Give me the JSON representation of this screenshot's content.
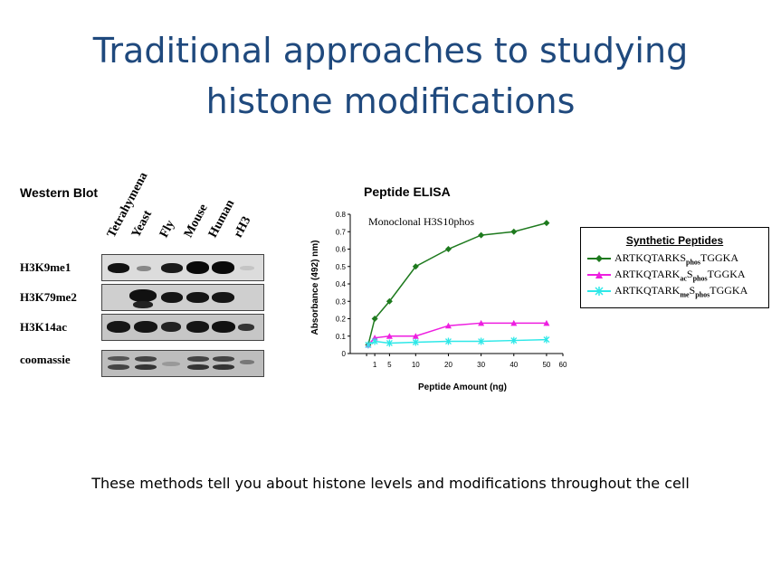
{
  "title": {
    "line1": "Traditional approaches to studying",
    "line2": "histone modifications"
  },
  "western_blot": {
    "heading": "Western Blot",
    "lanes": [
      "Tetrahymena",
      "Yeast",
      "Fly",
      "Mouse",
      "Human",
      "rH3"
    ],
    "rows": [
      "H3K9me1",
      "H3K79me2",
      "H3K14ac",
      "coomassie"
    ]
  },
  "elisa": {
    "heading": "Peptide ELISA",
    "annotation": "Monoclonal H3S10phos",
    "legend": {
      "title": "Synthetic Peptides",
      "entries": [
        {
          "pre": "ARTKQTARKS",
          "sub1": "phos",
          "mid": "",
          "sub2": "",
          "post": "TGGKA"
        },
        {
          "pre": "ARTKQTARK",
          "sub1": "ac",
          "mid": "S",
          "sub2": "phos",
          "post": "TGGKA"
        },
        {
          "pre": "ARTKQTARK",
          "sub1": "me",
          "mid": "S",
          "sub2": "phos",
          "post": "TGGKA"
        }
      ]
    },
    "colors": {
      "series1": "#1e7a1e",
      "series2": "#ee1ee0",
      "series3": "#2ee8e8"
    }
  },
  "chart_data": {
    "type": "line",
    "xlabel": "Peptide Amount (ng)",
    "ylabel": "Absorbance (492) nm)",
    "xlim": [
      -5,
      60
    ],
    "ylim": [
      0,
      0.8
    ],
    "xticks": [
      1,
      5,
      10,
      15,
      20,
      25,
      30,
      35,
      40,
      45,
      50,
      55,
      60
    ],
    "yticks": [
      "0",
      "0.1",
      "0.2",
      "0.3",
      "0.4",
      "0.5",
      "0.6",
      "0.7",
      "0.8"
    ],
    "x": [
      0.5,
      2.5,
      7,
      15,
      25,
      35,
      45,
      55
    ],
    "series": [
      {
        "values": [
          0.05,
          0.2,
          0.3,
          0.5,
          0.6,
          0.68,
          0.7,
          0.75
        ],
        "marker": "diamond"
      },
      {
        "values": [
          0.05,
          0.09,
          0.1,
          0.1,
          0.16,
          0.175,
          0.175,
          0.175
        ],
        "marker": "triangle"
      },
      {
        "values": [
          0.05,
          0.07,
          0.06,
          0.065,
          0.07,
          0.07,
          0.075,
          0.08
        ],
        "marker": "asterisk"
      }
    ]
  },
  "footer": "These methods tell you about histone levels and modifications throughout the cell"
}
